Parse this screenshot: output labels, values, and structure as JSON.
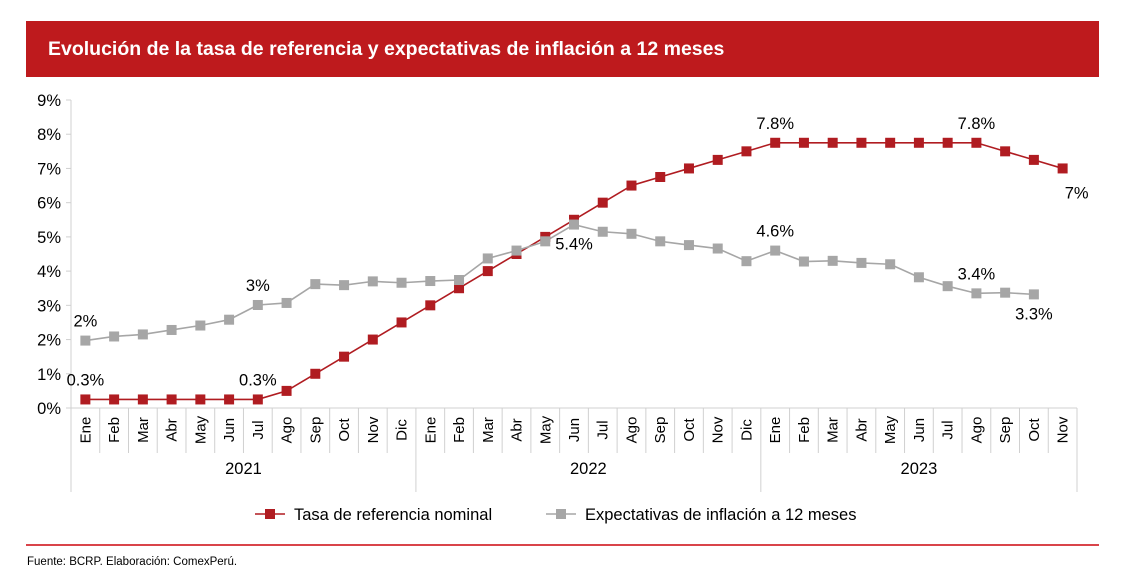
{
  "header": {
    "title": "Evolución de la tasa de referencia y expectativas de inflación a 12 meses"
  },
  "source": "Fuente: BCRP. Elaboración: ComexPerú.",
  "colors": {
    "header_bg": "#be1a1d",
    "series_red": "#b01c21",
    "series_gray": "#a6a6a6",
    "axis": "#d0d0d0"
  },
  "chart_data": {
    "type": "line",
    "title": "Evolución de la tasa de referencia y expectativas de inflación a 12 meses",
    "xlabel": "",
    "ylabel": "",
    "ylim": [
      0,
      9
    ],
    "yticks": [
      "0%",
      "1%",
      "2%",
      "3%",
      "4%",
      "5%",
      "6%",
      "7%",
      "8%",
      "9%"
    ],
    "grid": false,
    "legend_position": "bottom",
    "years": [
      {
        "label": "2021",
        "months": 12
      },
      {
        "label": "2022",
        "months": 12
      },
      {
        "label": "2023",
        "months": 11
      }
    ],
    "categories": [
      "Ene",
      "Feb",
      "Mar",
      "Abr",
      "May",
      "Jun",
      "Jul",
      "Ago",
      "Sep",
      "Oct",
      "Nov",
      "Dic",
      "Ene",
      "Feb",
      "Mar",
      "Abr",
      "May",
      "Jun",
      "Jul",
      "Ago",
      "Sep",
      "Oct",
      "Nov",
      "Dic",
      "Ene",
      "Feb",
      "Mar",
      "Abr",
      "May",
      "Jun",
      "Jul",
      "Ago",
      "Sep",
      "Oct",
      "Nov"
    ],
    "series": [
      {
        "name": "Tasa de referencia nominal",
        "color": "#b01c21",
        "values": [
          0.25,
          0.25,
          0.25,
          0.25,
          0.25,
          0.25,
          0.25,
          0.5,
          1.0,
          1.5,
          2.0,
          2.5,
          3.0,
          3.5,
          4.0,
          4.5,
          5.0,
          5.5,
          6.0,
          6.5,
          6.75,
          7.0,
          7.25,
          7.5,
          7.75,
          7.75,
          7.75,
          7.75,
          7.75,
          7.75,
          7.75,
          7.75,
          7.5,
          7.25,
          7.0
        ],
        "labels": [
          {
            "index": 0,
            "text": "0.3%",
            "pos": "above"
          },
          {
            "index": 6,
            "text": "0.3%",
            "pos": "above"
          },
          {
            "index": 24,
            "text": "7.8%",
            "pos": "above"
          },
          {
            "index": 31,
            "text": "7.8%",
            "pos": "above"
          },
          {
            "index": 34,
            "text": "7%",
            "pos": "below-right"
          }
        ]
      },
      {
        "name": "Expectativas de inflación a 12 meses",
        "color": "#a6a6a6",
        "values": [
          1.97,
          2.09,
          2.15,
          2.28,
          2.41,
          2.58,
          3.01,
          3.07,
          3.62,
          3.59,
          3.7,
          3.66,
          3.71,
          3.74,
          4.37,
          4.6,
          4.87,
          5.36,
          5.15,
          5.09,
          4.87,
          4.76,
          4.66,
          4.29,
          4.6,
          4.28,
          4.3,
          4.24,
          4.2,
          3.82,
          3.56,
          3.35,
          3.37,
          3.32
        ],
        "labels": [
          {
            "index": 0,
            "text": "2%",
            "pos": "above"
          },
          {
            "index": 6,
            "text": "3%",
            "pos": "above"
          },
          {
            "index": 17,
            "text": "5.4%",
            "pos": "below"
          },
          {
            "index": 24,
            "text": "4.6%",
            "pos": "above"
          },
          {
            "index": 31,
            "text": "3.4%",
            "pos": "above"
          },
          {
            "index": 33,
            "text": "3.3%",
            "pos": "below"
          }
        ]
      }
    ]
  }
}
